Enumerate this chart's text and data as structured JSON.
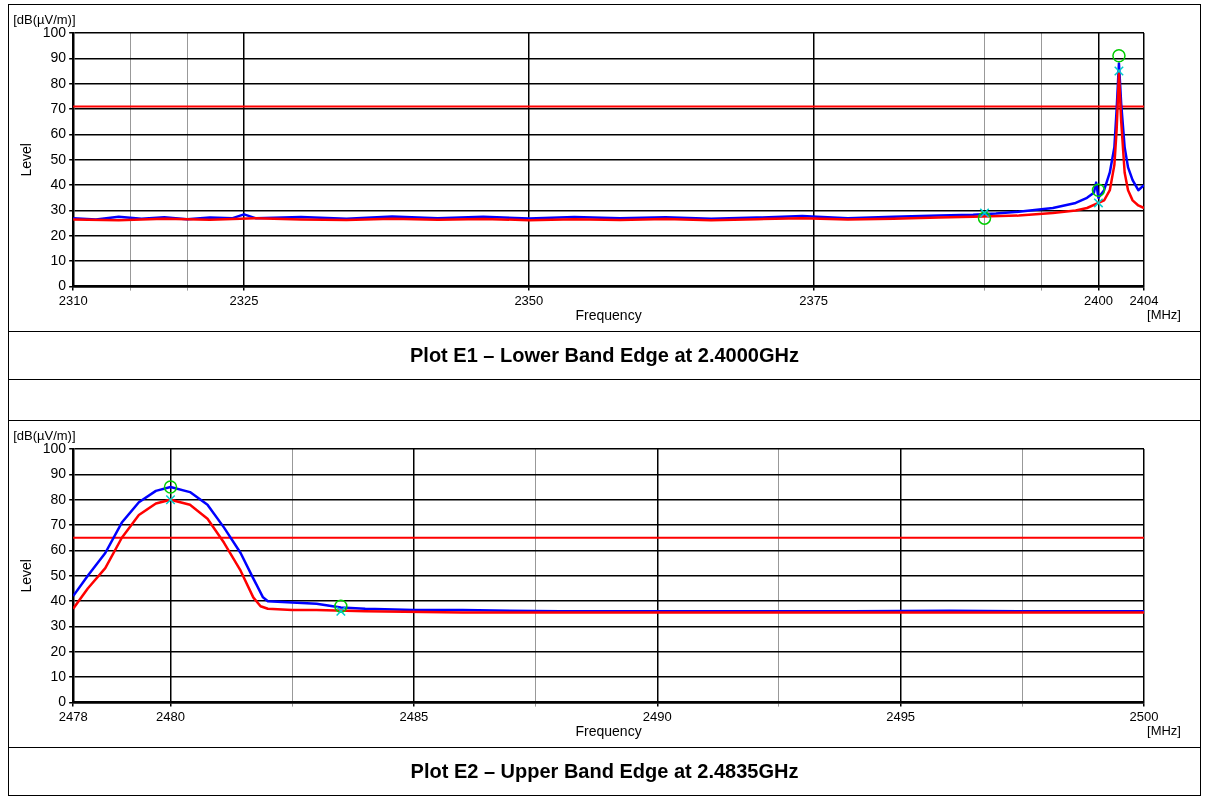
{
  "chart_data": [
    {
      "type": "line",
      "title": "Plot E1 – Lower Band Edge at 2.4000GHz",
      "xlabel": "Frequency",
      "ylabel": "Level",
      "annotations": [
        "[dB(µV/m)]",
        "[MHz]"
      ],
      "xlim": [
        2310,
        2404
      ],
      "xticks": [
        2310,
        {
          "value": 2315,
          "label": null
        },
        {
          "value": 2320,
          "label": null
        },
        2325,
        2350,
        2375,
        {
          "value": 2390,
          "label": null
        },
        {
          "value": 2395,
          "label": null
        },
        2400,
        2404
      ],
      "ylim": [
        0,
        100
      ],
      "yticks": [
        0,
        10,
        20,
        30,
        40,
        50,
        60,
        70,
        80,
        90,
        100
      ],
      "grid": true,
      "ref_lines": [
        {
          "axis": "y",
          "value": 71,
          "color": "#ff0000"
        }
      ],
      "series": [
        {
          "color": "#0000ff",
          "x": [
            2310,
            2312,
            2314,
            2316,
            2318,
            2320,
            2322,
            2324,
            2325,
            2326,
            2330,
            2334,
            2338,
            2342,
            2346,
            2350,
            2354,
            2358,
            2362,
            2366,
            2370,
            2374,
            2378,
            2382,
            2386,
            2389,
            2391,
            2393,
            2395,
            2396,
            2397,
            2398,
            2399,
            2399.6,
            2399.8,
            2400,
            2400.5,
            2401,
            2401.4,
            2401.6,
            2401.8,
            2402,
            2402.3,
            2402.6,
            2403,
            2403.5,
            2404
          ],
          "values": [
            27,
            26.5,
            27.5,
            26.8,
            27.3,
            26.6,
            27.2,
            27,
            28.5,
            27,
            27.4,
            26.8,
            27.6,
            27,
            27.5,
            26.9,
            27.4,
            27,
            27.3,
            26.8,
            27.2,
            27.8,
            27,
            27.5,
            28,
            28.3,
            28.8,
            29.5,
            30.5,
            31,
            32,
            33,
            35,
            37,
            41,
            35,
            38,
            45,
            55,
            70,
            88,
            72,
            55,
            47,
            42,
            38,
            40
          ]
        },
        {
          "color": "#ff0000",
          "x": [
            2310,
            2314,
            2318,
            2322,
            2326,
            2330,
            2334,
            2338,
            2342,
            2346,
            2350,
            2354,
            2358,
            2362,
            2366,
            2370,
            2374,
            2378,
            2382,
            2386,
            2389,
            2393,
            2396,
            2398,
            2399,
            2400,
            2400.5,
            2401,
            2401.4,
            2401.6,
            2401.8,
            2402,
            2402.3,
            2402.6,
            2403,
            2403.5,
            2404
          ],
          "values": [
            26.5,
            26.2,
            26.8,
            26.4,
            27,
            26.5,
            26.3,
            26.8,
            26.4,
            26.7,
            26.2,
            26.6,
            26.3,
            26.7,
            26.2,
            26.6,
            27,
            26.5,
            26.8,
            27.2,
            27.5,
            28,
            29,
            30,
            31,
            33,
            34,
            38,
            48,
            62,
            84,
            65,
            45,
            38,
            34,
            32,
            31
          ]
        },
        {
          "type": "scatter",
          "marker": "circle",
          "color": "#00cc00",
          "x": [
            2390,
            2400,
            2401.8
          ],
          "values": [
            27,
            38,
            91
          ]
        },
        {
          "type": "scatter",
          "marker": "cross",
          "color": "#00cccc",
          "x": [
            2390,
            2400,
            2401.8
          ],
          "values": [
            29,
            33,
            85
          ]
        }
      ]
    },
    {
      "type": "line",
      "title": "Plot E2 – Upper Band Edge at 2.4835GHz",
      "xlabel": "Frequency",
      "ylabel": "Level",
      "annotations": [
        "[dB(µV/m)]",
        "[MHz]"
      ],
      "xlim": [
        2478,
        2500
      ],
      "xticks": [
        2478,
        2480,
        {
          "value": 2482.5,
          "label": null
        },
        2485,
        {
          "value": 2487.5,
          "label": null
        },
        2490,
        {
          "value": 2492.5,
          "label": null
        },
        2495,
        {
          "value": 2497.5,
          "label": null
        },
        2500
      ],
      "ylim": [
        0,
        100
      ],
      "yticks": [
        0,
        10,
        20,
        30,
        40,
        50,
        60,
        70,
        80,
        90,
        100
      ],
      "grid": true,
      "ref_lines": [
        {
          "axis": "y",
          "value": 65,
          "color": "#ff0000"
        }
      ],
      "series": [
        {
          "color": "#0000ff",
          "x": [
            2478,
            2478.3,
            2478.66,
            2479,
            2479.35,
            2479.7,
            2480,
            2480.4,
            2480.76,
            2481.1,
            2481.44,
            2481.7,
            2481.9,
            2482,
            2482.5,
            2483,
            2483.5,
            2484,
            2485,
            2486,
            2488,
            2490,
            2492,
            2494,
            2496,
            2498,
            2500
          ],
          "values": [
            42,
            50,
            59,
            71,
            79,
            83.5,
            85,
            83,
            78,
            69,
            59,
            49,
            41.5,
            40,
            39.5,
            39,
            37.5,
            37,
            36.5,
            36.5,
            36,
            36,
            36,
            36,
            36.2,
            36,
            36
          ]
        },
        {
          "color": "#ff0000",
          "x": [
            2478,
            2478.3,
            2478.66,
            2479,
            2479.35,
            2479.7,
            2480,
            2480.4,
            2480.76,
            2481.1,
            2481.44,
            2481.7,
            2481.85,
            2482,
            2482.5,
            2483,
            2484,
            2486,
            2488,
            2490,
            2492,
            2494,
            2496,
            2498,
            2500
          ],
          "values": [
            37,
            45,
            53,
            65,
            74,
            78.5,
            80,
            78,
            72.5,
            63,
            52,
            41.5,
            38,
            37,
            36.5,
            36.5,
            36,
            35.5,
            35.5,
            35.5,
            35.5,
            35.5,
            35.5,
            35.5,
            35.5
          ]
        },
        {
          "type": "scatter",
          "marker": "circle",
          "color": "#00cc00",
          "x": [
            2480,
            2483.5
          ],
          "values": [
            85,
            38
          ]
        },
        {
          "type": "scatter",
          "marker": "cross",
          "color": "#00cccc",
          "x": [
            2480,
            2483.5
          ],
          "values": [
            80,
            36
          ]
        }
      ]
    }
  ]
}
